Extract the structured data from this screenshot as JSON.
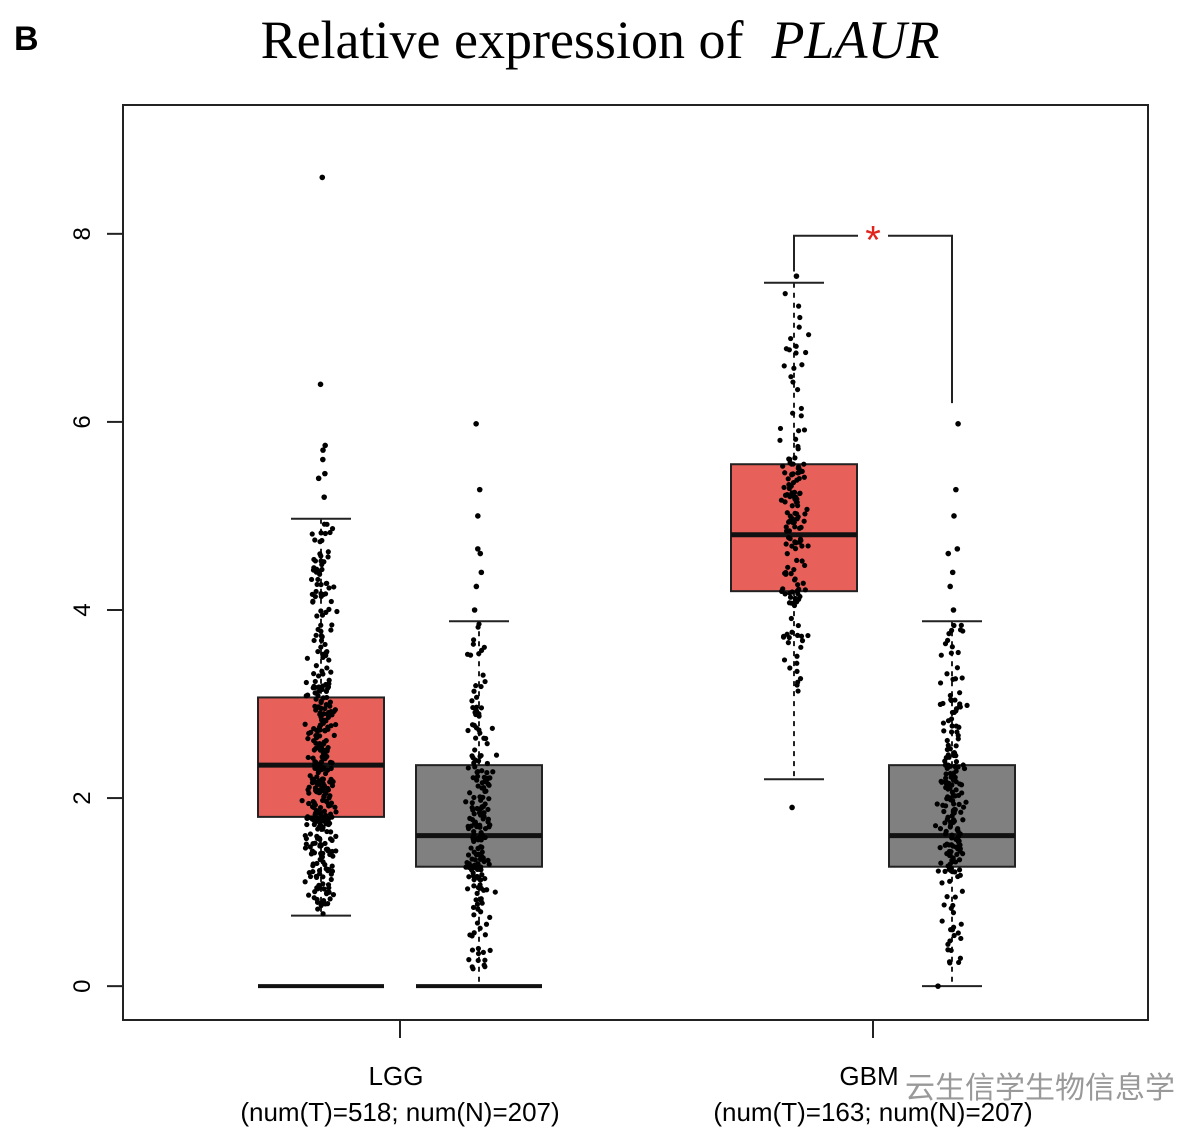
{
  "panel_label": "B",
  "chart_data": {
    "type": "box",
    "title_prefix": "Relative expression of",
    "title_gene": "PLAUR",
    "xlabel": "",
    "ylabel": "",
    "ylim": [
      -0.36,
      9.37
    ],
    "yticks": [
      "0",
      "2",
      "4",
      "6",
      "8"
    ],
    "grid": false,
    "categories": [
      {
        "name": "LGG",
        "subtitle": "(num(T)=518; num(N)=207)"
      },
      {
        "name": "GBM",
        "subtitle": "(num(T)=163; num(N)=207)"
      }
    ],
    "groups": [
      {
        "category": "LGG",
        "type": "T",
        "color": "#e8605a",
        "n": 518,
        "whisker_low": 0.75,
        "q1": 1.8,
        "median": 2.35,
        "q3": 3.07,
        "whisker_high": 4.97,
        "zero_values": true,
        "outliers": [
          8.6,
          6.4,
          5.75,
          5.7,
          5.6,
          5.45,
          5.4,
          5.2
        ]
      },
      {
        "category": "LGG",
        "type": "N",
        "color": "#808080",
        "n": 207,
        "whisker_low": 0,
        "q1": 1.27,
        "median": 1.6,
        "q3": 2.35,
        "whisker_high": 3.88,
        "zero_values": true,
        "outliers": [
          5.98,
          5.28,
          5.0,
          4.65,
          4.6,
          4.4,
          4.25,
          4.0
        ]
      },
      {
        "category": "GBM",
        "type": "T",
        "color": "#e8605a",
        "n": 163,
        "whisker_low": 2.2,
        "q1": 4.2,
        "median": 4.8,
        "q3": 5.55,
        "whisker_high": 7.48,
        "zero_values": false,
        "outliers": [
          7.55,
          1.9
        ]
      },
      {
        "category": "GBM",
        "type": "N",
        "color": "#808080",
        "n": 207,
        "whisker_low": 0,
        "q1": 1.27,
        "median": 1.6,
        "q3": 2.35,
        "whisker_high": 3.88,
        "zero_values": false,
        "outliers": [
          5.98,
          5.28,
          5.0,
          4.65,
          4.6,
          4.4,
          4.25,
          4.0
        ]
      }
    ],
    "significance": [
      {
        "category": "GBM",
        "label": "*",
        "color": "#e0261c"
      }
    ]
  },
  "watermark": "云生信学生物信息学"
}
